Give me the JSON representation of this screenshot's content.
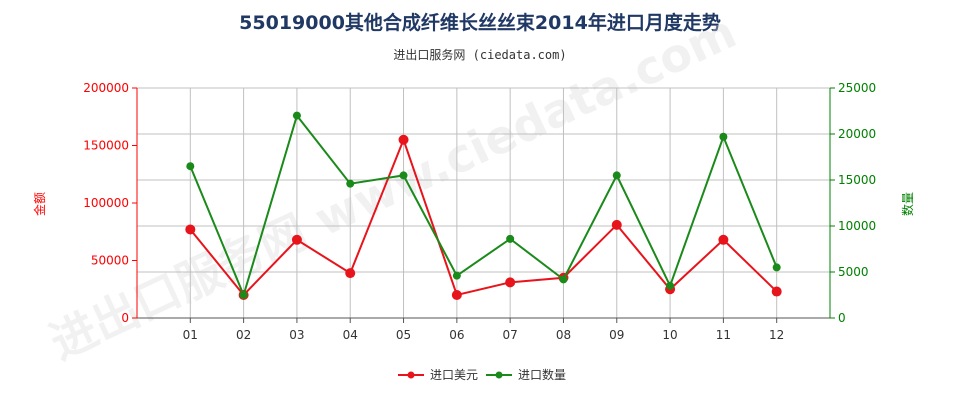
{
  "title": "55019000其他合成纤维长丝丝束2014年进口月度走势",
  "subtitle": "进出口服务网 (ciedata.com)",
  "watermark": "进出口服务网 www.ciedata.com",
  "colors": {
    "left_axis": "#ff0000",
    "right_axis": "#008000",
    "grid": "#c0c0c0"
  },
  "chart_data": {
    "type": "line",
    "categories": [
      "01",
      "02",
      "03",
      "04",
      "05",
      "06",
      "07",
      "08",
      "09",
      "10",
      "11",
      "12"
    ],
    "y_left": {
      "label": "金额",
      "range": [
        0,
        200000
      ],
      "ticks": [
        0,
        50000,
        100000,
        150000,
        200000
      ]
    },
    "y_right": {
      "label": "数量",
      "range": [
        0,
        25000
      ],
      "ticks": [
        0,
        5000,
        10000,
        15000,
        20000,
        25000
      ]
    },
    "grid": true,
    "legend_position": "bottom-center",
    "series": [
      {
        "name": "进口美元",
        "axis": "left",
        "color": "#e8141c",
        "values": [
          77000,
          20000,
          68000,
          39000,
          155000,
          20000,
          31000,
          35000,
          81000,
          25000,
          68000,
          23000
        ]
      },
      {
        "name": "进口数量",
        "axis": "right",
        "color": "#1a8a1a",
        "values": [
          16500,
          2500,
          22000,
          14600,
          15500,
          4600,
          8600,
          4200,
          15500,
          3500,
          19700,
          5500
        ]
      }
    ]
  }
}
